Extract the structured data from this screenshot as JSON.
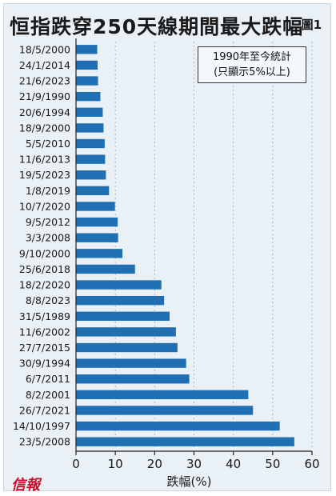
{
  "header": {
    "title": "恒指跌穿250天線期間最大跌幅",
    "figure_label": "圖1"
  },
  "note": {
    "line1": "1990年至今統計",
    "line2": "(只顯示5%以上)"
  },
  "logo_text": "信報",
  "colors": {
    "bar": "#1f6fb2",
    "background": "#e9f0f6",
    "logo": "#c8102e"
  },
  "chart_data": {
    "type": "bar",
    "orientation": "horizontal",
    "title": "恒指跌穿250天線期間最大跌幅",
    "xlabel": "跌幅(%)",
    "ylabel": "",
    "xlim": [
      0,
      60
    ],
    "xticks": [
      0,
      10,
      20,
      30,
      40,
      50,
      60
    ],
    "grid": "vertical dashed",
    "categories": [
      "18/5/2000",
      "24/1/2014",
      "21/6/2023",
      "21/9/1990",
      "20/6/1994",
      "18/9/2000",
      "5/5/2010",
      "11/6/2013",
      "19/5/2023",
      "1/8/2019",
      "10/7/2020",
      "9/5/2012",
      "3/3/2008",
      "9/10/2000",
      "25/6/2018",
      "18/2/2020",
      "8/8/2023",
      "31/5/1989",
      "11/6/2002",
      "27/7/2015",
      "30/9/1994",
      "6/7/2011",
      "8/2/2001",
      "26/7/2021",
      "14/10/1997",
      "23/5/2008"
    ],
    "values": [
      5.4,
      5.5,
      5.6,
      6.2,
      6.8,
      7.0,
      7.3,
      7.4,
      7.6,
      8.4,
      9.9,
      10.6,
      10.7,
      11.8,
      15.0,
      21.7,
      22.4,
      23.8,
      25.4,
      25.8,
      28.0,
      28.8,
      43.8,
      45.0,
      51.8,
      55.5
    ]
  }
}
